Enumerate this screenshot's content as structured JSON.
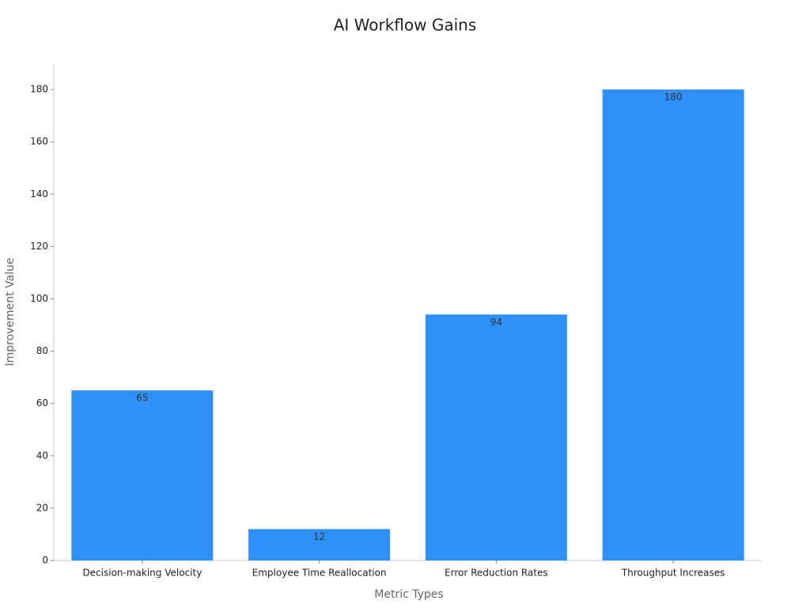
{
  "chart_data": {
    "type": "bar",
    "title": "AI Workflow Gains",
    "x_label": "Metric Types",
    "y_label": "Improvement Value",
    "categories": [
      "Decision-making Velocity",
      "Employee Time Reallocation",
      "Error Reduction Rates",
      "Throughput Increases"
    ],
    "values": [
      65,
      12,
      94,
      180
    ],
    "color": "#2e91f8",
    "ylim": [
      0,
      190
    ],
    "yticks": [
      0,
      20,
      40,
      60,
      80,
      100,
      120,
      140,
      160,
      180
    ],
    "grid": false
  }
}
